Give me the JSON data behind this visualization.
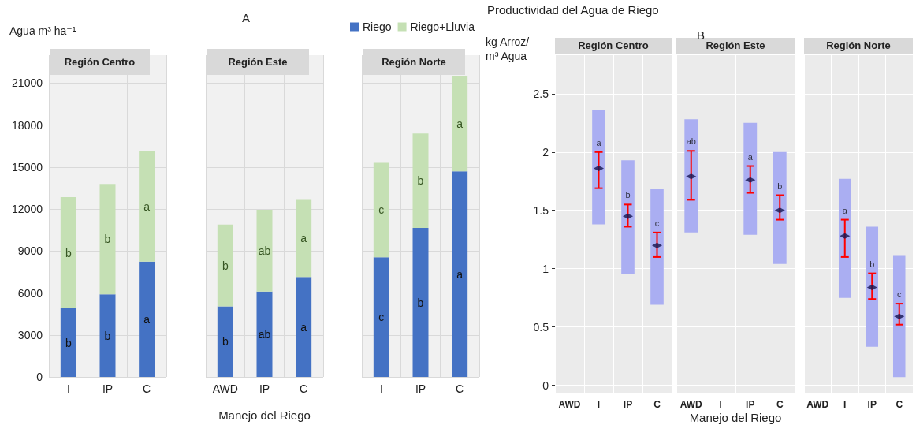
{
  "chart_data": [
    {
      "type": "bar",
      "stacked": true,
      "title": "Región Centro",
      "ylabel": "Agua m³ ha⁻¹",
      "categories": [
        "I",
        "IP",
        "C"
      ],
      "series": [
        {
          "color": "#4472c4",
          "values": [
            4900,
            5900,
            8250
          ],
          "value_labels": [
            "b",
            "b",
            "a"
          ]
        },
        {
          "color": "#c5e0b4",
          "values": [
            7950,
            7900,
            7900
          ],
          "value_labels": [
            "b",
            "b",
            "a"
          ]
        }
      ],
      "ylim": [
        0,
        23000
      ],
      "yticks": [
        0,
        3000,
        6000,
        9000,
        12000,
        15000,
        18000,
        21000
      ],
      "grid": true
    },
    {
      "type": "bar",
      "stacked": true,
      "title": "Región Este",
      "xlabel": "Manejo del Riego",
      "categories": [
        "AWD",
        "IP",
        "C"
      ],
      "series": [
        {
          "color": "#4472c4",
          "values": [
            5050,
            6100,
            7150
          ],
          "value_labels": [
            "b",
            "ab",
            "a"
          ]
        },
        {
          "color": "#c5e0b4",
          "values": [
            5850,
            5850,
            5500
          ],
          "value_labels": [
            "b",
            "ab",
            "a"
          ]
        }
      ],
      "ylim": [
        0,
        23000
      ],
      "yticks": [
        0,
        3000,
        6000,
        9000,
        12000,
        15000,
        18000,
        21000
      ],
      "grid": true,
      "tick_labels": "x",
      "annotations": [
        "A"
      ]
    },
    {
      "type": "bar",
      "stacked": true,
      "title": "Región Norte",
      "categories": [
        "I",
        "IP",
        "C"
      ],
      "series": [
        {
          "name": "Riego",
          "color": "#4472c4",
          "values": [
            8550,
            10650,
            14700
          ],
          "value_labels": [
            "c",
            "b",
            "a"
          ]
        },
        {
          "name": "Riego+Lluvia",
          "color": "#c5e0b4",
          "values": [
            6750,
            6750,
            6800
          ],
          "value_labels": [
            "c",
            "b",
            "a"
          ]
        }
      ],
      "ylim": [
        0,
        23000
      ],
      "yticks": [
        0,
        3000,
        6000,
        9000,
        12000,
        15000,
        18000,
        21000
      ],
      "grid": true,
      "legend": "top left",
      "tick_labels": "x"
    },
    {
      "type": "bar",
      "title": "Región Centro",
      "ylabel": "kg Arroz/ m³ Agua",
      "categories": [
        "AWD",
        "I",
        "IP",
        "C"
      ],
      "series": [
        {
          "color": "#aaaef2",
          "base": [
            null,
            1.38,
            0.95,
            0.69
          ],
          "values": [
            null,
            0.98,
            0.98,
            0.99
          ]
        },
        {
          "type": "scatter",
          "color": "#141450",
          "values": [
            null,
            1.86,
            1.45,
            1.2
          ],
          "errors": [
            null,
            [
              1.69,
              2.0
            ],
            [
              1.36,
              1.55
            ],
            [
              1.1,
              1.31
            ]
          ],
          "value_labels": [
            null,
            "a",
            "b",
            "c"
          ]
        }
      ],
      "ylim": [
        -0.07,
        2.83
      ],
      "yticks": [
        0,
        0.5,
        1,
        1.5,
        2,
        2.5
      ],
      "grid": true,
      "marker": "diamond",
      "annotations": [
        "Productividad del Agua de Riego"
      ]
    },
    {
      "type": "bar",
      "title": "Región Este",
      "xlabel": "Manejo del Riego",
      "categories": [
        "AWD",
        "I",
        "IP",
        "C"
      ],
      "series": [
        {
          "color": "#aaaef2",
          "base": [
            1.31,
            null,
            1.29,
            1.04
          ],
          "values": [
            0.97,
            null,
            0.96,
            0.96
          ]
        },
        {
          "type": "scatter",
          "color": "#141450",
          "values": [
            1.79,
            null,
            1.76,
            1.5
          ],
          "errors": [
            [
              1.59,
              2.01
            ],
            null,
            [
              1.65,
              1.88
            ],
            [
              1.42,
              1.63
            ]
          ],
          "value_labels": [
            "ab",
            null,
            "a",
            "b"
          ]
        }
      ],
      "ylim": [
        -0.07,
        2.83
      ],
      "yticks": [
        0,
        0.5,
        1,
        1.5,
        2,
        2.5
      ],
      "grid": true,
      "marker": "diamond",
      "tick_labels": "x",
      "annotations": [
        "B"
      ]
    },
    {
      "type": "bar",
      "title": "Región Norte",
      "categories": [
        "AWD",
        "I",
        "IP",
        "C"
      ],
      "series": [
        {
          "color": "#aaaef2",
          "base": [
            null,
            0.75,
            0.33,
            0.07
          ],
          "values": [
            null,
            1.02,
            1.03,
            1.04
          ]
        },
        {
          "type": "scatter",
          "color": "#141450",
          "values": [
            null,
            1.28,
            0.84,
            0.59
          ],
          "errors": [
            null,
            [
              1.1,
              1.42
            ],
            [
              0.74,
              0.96
            ],
            [
              0.52,
              0.7
            ]
          ],
          "value_labels": [
            null,
            "a",
            "b",
            "c"
          ]
        }
      ],
      "ylim": [
        -0.07,
        2.83
      ],
      "yticks": [
        0,
        0.5,
        1,
        1.5,
        2,
        2.5
      ],
      "grid": true,
      "marker": "diamond",
      "tick_labels": "x"
    }
  ]
}
